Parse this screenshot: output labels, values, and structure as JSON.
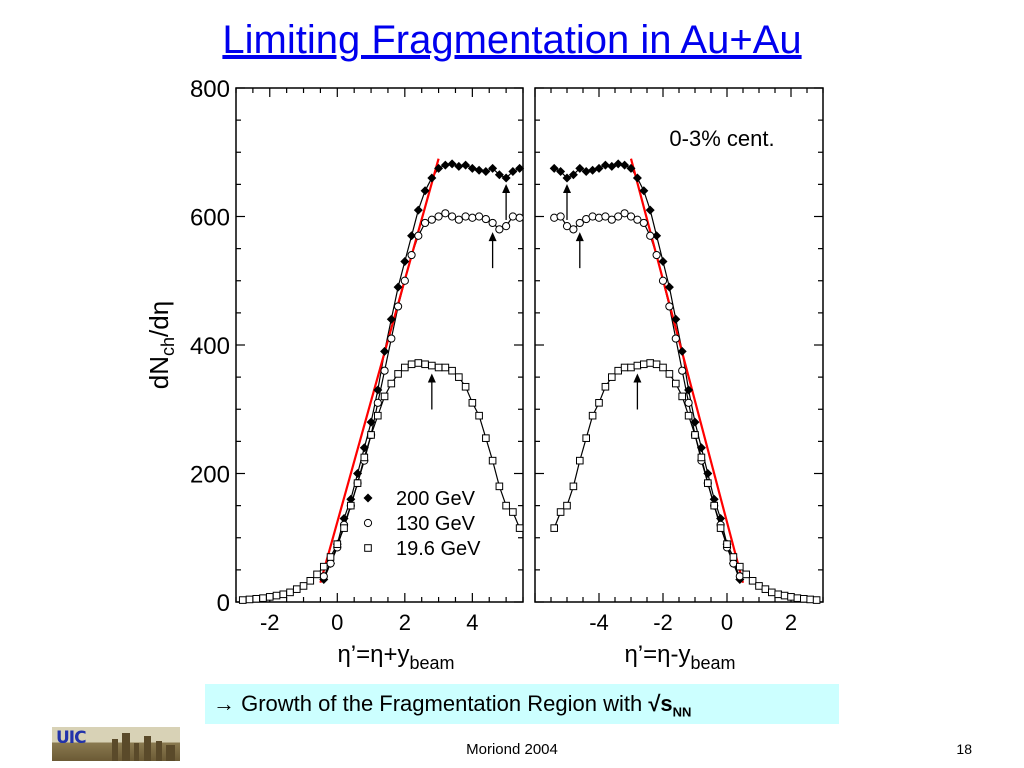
{
  "slide": {
    "title": "Limiting Fragmentation in Au+Au",
    "callout_arrow": "→",
    "callout_text": " Growth of the Fragmentation Region with ",
    "callout_sqrt": "√s",
    "callout_sub": "NN",
    "logo_text": "UIC",
    "footer": "Moriond 2004",
    "page_number": "18"
  },
  "chart_data": {
    "type": "scatter",
    "ylabel_main": "dN",
    "ylabel_sub": "ch",
    "ylabel_tail": "/dη",
    "ylim": [
      0,
      800
    ],
    "yticks": [
      "0",
      "200",
      "400",
      "600",
      "800"
    ],
    "annotation": "0-3% cent.",
    "legend_placement": "lower-left panel, center",
    "panels": [
      {
        "xlim": [
          -3,
          5.5
        ],
        "xticks": [
          -2,
          0,
          2,
          4
        ],
        "xtick_labels": [
          "-2",
          "0",
          "2",
          "4"
        ],
        "xlabel_main": "η’=η+y",
        "xlabel_sub": "beam",
        "red_line": {
          "x": [
            -0.5,
            3.0
          ],
          "y": [
            30,
            690
          ]
        },
        "series": [
          {
            "name": "200 GeV",
            "marker": "diamond",
            "x": [
              -0.4,
              -0.2,
              0.0,
              0.2,
              0.4,
              0.6,
              0.8,
              1.0,
              1.2,
              1.4,
              1.6,
              1.8,
              2.0,
              2.2,
              2.4,
              2.6,
              2.8,
              3.0,
              3.2,
              3.4,
              3.6,
              3.8,
              4.0,
              4.2,
              4.4,
              4.6,
              4.8,
              5.0,
              5.2,
              5.4
            ],
            "y": [
              35,
              60,
              90,
              130,
              160,
              200,
              240,
              280,
              330,
              390,
              440,
              490,
              530,
              570,
              610,
              640,
              660,
              675,
              680,
              682,
              678,
              680,
              675,
              672,
              670,
              675,
              665,
              660,
              670,
              675
            ]
          },
          {
            "name": "130 GeV",
            "marker": "circle",
            "x": [
              -0.4,
              -0.2,
              0.0,
              0.2,
              0.4,
              0.6,
              0.8,
              1.0,
              1.2,
              1.4,
              1.6,
              1.8,
              2.0,
              2.2,
              2.4,
              2.6,
              2.8,
              3.0,
              3.2,
              3.4,
              3.6,
              3.8,
              4.0,
              4.2,
              4.4,
              4.6,
              4.8,
              5.0,
              5.2,
              5.4
            ],
            "y": [
              40,
              60,
              85,
              120,
              150,
              185,
              220,
              260,
              310,
              360,
              410,
              460,
              500,
              540,
              570,
              590,
              595,
              600,
              605,
              600,
              595,
              600,
              598,
              600,
              596,
              590,
              580,
              585,
              600,
              598
            ]
          },
          {
            "name": "19.6 GeV",
            "marker": "square",
            "x": [
              -2.8,
              -2.6,
              -2.4,
              -2.2,
              -2.0,
              -1.8,
              -1.6,
              -1.4,
              -1.2,
              -1.0,
              -0.8,
              -0.6,
              -0.4,
              -0.2,
              0.0,
              0.2,
              0.4,
              0.6,
              0.8,
              1.0,
              1.2,
              1.4,
              1.6,
              1.8,
              2.0,
              2.2,
              2.4,
              2.6,
              2.8,
              3.0,
              3.2,
              3.4,
              3.6,
              3.8,
              4.0,
              4.2,
              4.4,
              4.6,
              4.8,
              5.0,
              5.2,
              5.4
            ],
            "y": [
              3,
              4,
              5,
              6,
              8,
              10,
              12,
              15,
              20,
              25,
              33,
              43,
              55,
              70,
              90,
              115,
              150,
              185,
              225,
              260,
              290,
              320,
              340,
              355,
              365,
              370,
              372,
              370,
              368,
              365,
              365,
              360,
              350,
              335,
              310,
              290,
              255,
              220,
              180,
              150,
              140,
              115
            ]
          }
        ],
        "arrows": [
          {
            "x": 5.0,
            "y_tip": 660
          },
          {
            "x": 4.6,
            "y_tip": 585
          },
          {
            "x": 2.8,
            "y_tip": 365
          }
        ]
      },
      {
        "xlim": [
          -6,
          3
        ],
        "xticks": [
          -4,
          -2,
          0,
          2
        ],
        "xtick_labels": [
          "-4",
          "-2",
          "0",
          "2"
        ],
        "xlabel_main": "η’=η-y",
        "xlabel_sub": "beam",
        "red_line": {
          "x": [
            -3.0,
            0.5
          ],
          "y": [
            690,
            30
          ]
        },
        "series": [
          {
            "name": "200 GeV",
            "marker": "diamond",
            "x": [
              -5.4,
              -5.2,
              -5.0,
              -4.8,
              -4.6,
              -4.4,
              -4.2,
              -4.0,
              -3.8,
              -3.6,
              -3.4,
              -3.2,
              -3.0,
              -2.8,
              -2.6,
              -2.4,
              -2.2,
              -2.0,
              -1.8,
              -1.6,
              -1.4,
              -1.2,
              -1.0,
              -0.8,
              -0.6,
              -0.4,
              -0.2,
              0.0,
              0.2,
              0.4
            ],
            "y": [
              675,
              670,
              660,
              665,
              675,
              670,
              672,
              675,
              680,
              678,
              682,
              680,
              675,
              660,
              640,
              610,
              570,
              530,
              490,
              440,
              390,
              330,
              280,
              240,
              200,
              160,
              130,
              90,
              60,
              35
            ]
          },
          {
            "name": "130 GeV",
            "marker": "circle",
            "x": [
              -5.4,
              -5.2,
              -5.0,
              -4.8,
              -4.6,
              -4.4,
              -4.2,
              -4.0,
              -3.8,
              -3.6,
              -3.4,
              -3.2,
              -3.0,
              -2.8,
              -2.6,
              -2.4,
              -2.2,
              -2.0,
              -1.8,
              -1.6,
              -1.4,
              -1.2,
              -1.0,
              -0.8,
              -0.6,
              -0.4,
              -0.2,
              0.0,
              0.2,
              0.4
            ],
            "y": [
              598,
              600,
              585,
              580,
              590,
              596,
              600,
              598,
              600,
              595,
              600,
              605,
              600,
              595,
              590,
              570,
              540,
              500,
              460,
              410,
              360,
              310,
              260,
              220,
              185,
              150,
              120,
              85,
              60,
              40
            ]
          },
          {
            "name": "19.6 GeV",
            "marker": "square",
            "x": [
              -5.4,
              -5.2,
              -5.0,
              -4.8,
              -4.6,
              -4.4,
              -4.2,
              -4.0,
              -3.8,
              -3.6,
              -3.4,
              -3.2,
              -3.0,
              -2.8,
              -2.6,
              -2.4,
              -2.2,
              -2.0,
              -1.8,
              -1.6,
              -1.4,
              -1.2,
              -1.0,
              -0.8,
              -0.6,
              -0.4,
              -0.2,
              0.0,
              0.2,
              0.4,
              0.6,
              0.8,
              1.0,
              1.2,
              1.4,
              1.6,
              1.8,
              2.0,
              2.2,
              2.4,
              2.6,
              2.8
            ],
            "y": [
              115,
              140,
              150,
              180,
              220,
              255,
              290,
              310,
              335,
              350,
              360,
              365,
              365,
              368,
              370,
              372,
              370,
              365,
              355,
              340,
              320,
              290,
              260,
              225,
              185,
              150,
              115,
              90,
              70,
              55,
              43,
              33,
              25,
              20,
              15,
              12,
              10,
              8,
              6,
              5,
              4,
              3
            ]
          }
        ],
        "arrows": [
          {
            "x": -5.0,
            "y_tip": 660
          },
          {
            "x": -4.6,
            "y_tip": 585
          },
          {
            "x": -2.8,
            "y_tip": 365
          }
        ]
      }
    ]
  }
}
